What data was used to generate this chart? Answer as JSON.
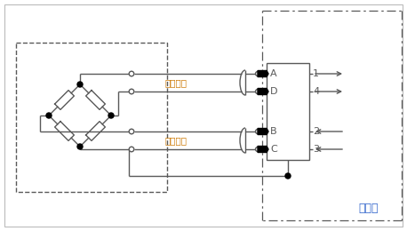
{
  "bg_color": "#ffffff",
  "line_color": "#595959",
  "dashed_color": "#595959",
  "dashdot_color": "#595959",
  "text_signal": "信号电压",
  "text_supply": "供电电压",
  "text_amp": "放大器",
  "text_color_label": "#cc7700",
  "text_color_amp": "#3366cc",
  "labels_left": [
    "A",
    "D",
    "B",
    "C"
  ],
  "labels_right": [
    "1",
    "4",
    "2",
    "3"
  ],
  "arrow_dirs": [
    1,
    1,
    -1,
    -1
  ],
  "figsize": [
    4.58,
    2.6
  ],
  "dpi": 100
}
